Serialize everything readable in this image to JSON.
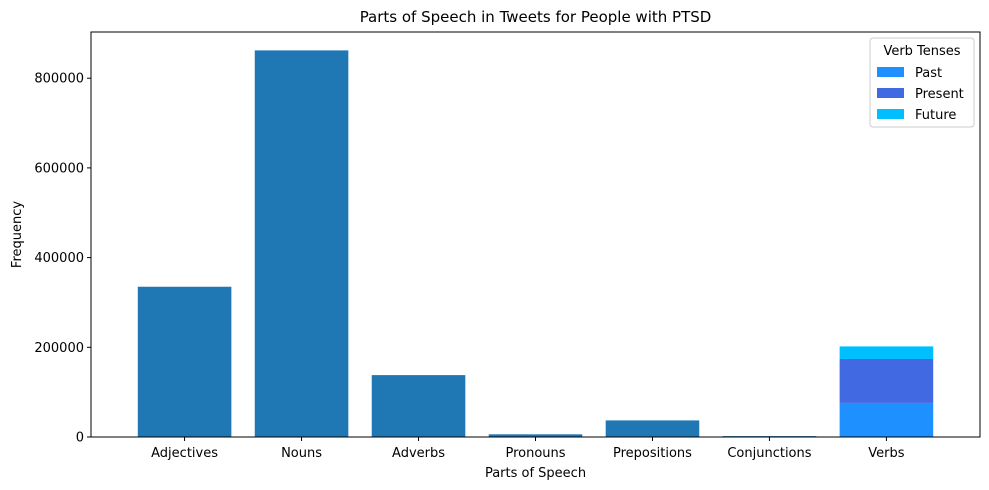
{
  "chart_data": {
    "type": "bar",
    "title": "Parts of Speech in Tweets for People with PTSD",
    "xlabel": "Parts of Speech",
    "ylabel": "Frequency",
    "ylim": [
      0,
      903000
    ],
    "yticks": [
      0,
      200000,
      400000,
      600000,
      800000
    ],
    "ytick_labels": [
      "0",
      "200000",
      "400000",
      "600000",
      "800000"
    ],
    "categories": [
      "Adjectives",
      "Nouns",
      "Adverbs",
      "Pronouns",
      "Prepositions",
      "Conjunctions",
      "Verbs"
    ],
    "values": [
      335000,
      862000,
      138000,
      6000,
      37000,
      2000,
      null
    ],
    "bar_color": "#1f77b4",
    "stacked": {
      "category": "Verbs",
      "series": [
        {
          "name": "Past",
          "value": 76000,
          "color": "#1e90ff"
        },
        {
          "name": "Present",
          "value": 98000,
          "color": "#4169e1"
        },
        {
          "name": "Future",
          "value": 28000,
          "color": "#00bfff"
        }
      ]
    },
    "legend": {
      "title": "Verb Tenses",
      "placement": "upper-right",
      "entries": [
        "Past",
        "Present",
        "Future"
      ]
    },
    "grid": false
  }
}
